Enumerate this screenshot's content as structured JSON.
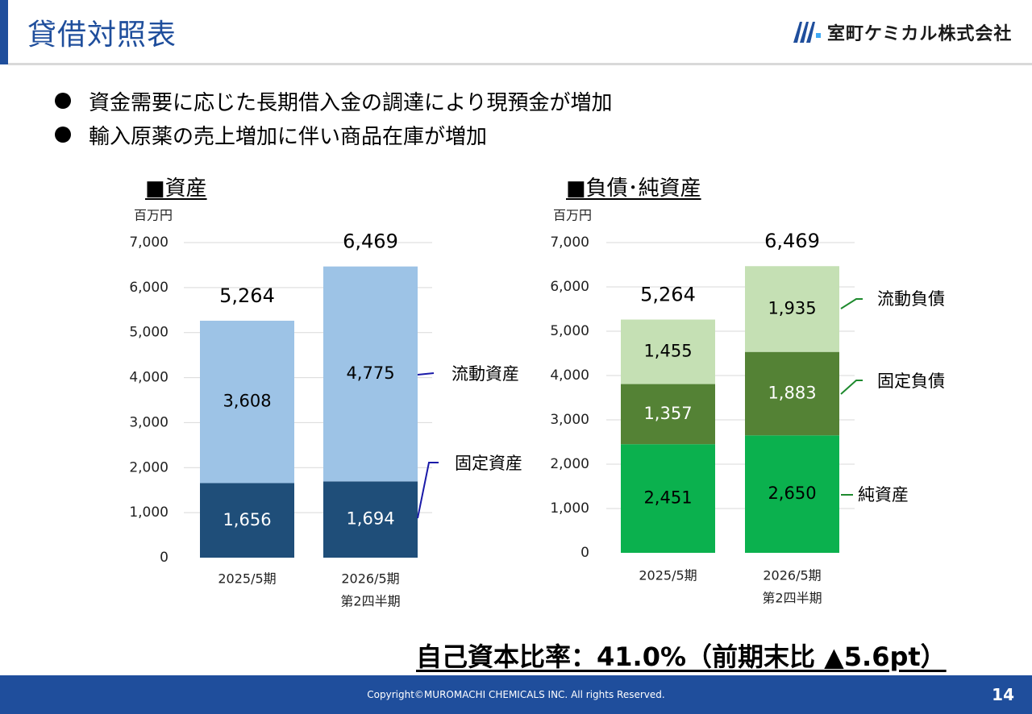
{
  "header": {
    "title": "貸借対照表",
    "company": "室町ケミカル株式会社"
  },
  "bullets": [
    "資金需要に応じた長期借入金の調達により現預金が増加",
    "輸入原薬の売上増加に伴い商品在庫が増加"
  ],
  "chart_data": [
    {
      "type": "bar",
      "stacked": true,
      "title": "■資産",
      "unit_label": "百万円",
      "categories": [
        "2025/5期",
        "2026/5期\n第2四半期"
      ],
      "yticks": [
        "0",
        "1,000",
        "2,000",
        "3,000",
        "4,000",
        "5,000",
        "6,000",
        "7,000"
      ],
      "ylim": [
        0,
        7000
      ],
      "totals": [
        5264,
        6469
      ],
      "total_labels": [
        "5,264",
        "6,469"
      ],
      "series": [
        {
          "name": "固定資産",
          "values": [
            1656,
            1694
          ],
          "labels": [
            "1,656",
            "1,694"
          ],
          "color": "#1f4e79",
          "text_color": "#ffffff",
          "leader_color": "#1a1aa8"
        },
        {
          "name": "流動資産",
          "values": [
            3608,
            4775
          ],
          "labels": [
            "3,608",
            "4,775"
          ],
          "color": "#9dc3e6",
          "text_color": "#000000",
          "leader_color": "#1a1aa8"
        }
      ]
    },
    {
      "type": "bar",
      "stacked": true,
      "title": "■負債･純資産",
      "unit_label": "百万円",
      "categories": [
        "2025/5期",
        "2026/5期\n第2四半期"
      ],
      "yticks": [
        "0",
        "1,000",
        "2,000",
        "3,000",
        "4,000",
        "5,000",
        "6,000",
        "7,000"
      ],
      "ylim": [
        0,
        7000
      ],
      "totals": [
        5264,
        6469
      ],
      "total_labels": [
        "5,264",
        "6,469"
      ],
      "series": [
        {
          "name": "純資産",
          "values": [
            2451,
            2650
          ],
          "labels": [
            "2,451",
            "2,650"
          ],
          "color": "#0bb14e",
          "text_color": "#000000",
          "leader_color": "#1e8a2e"
        },
        {
          "name": "固定負債",
          "values": [
            1357,
            1883
          ],
          "labels": [
            "1,357",
            "1,883"
          ],
          "color": "#548235",
          "text_color": "#ffffff",
          "leader_color": "#1e8a2e"
        },
        {
          "name": "流動負債",
          "values": [
            1455,
            1935
          ],
          "labels": [
            "1,455",
            "1,935"
          ],
          "color": "#c5e0b4",
          "text_color": "#000000",
          "leader_color": "#1e8a2e"
        }
      ]
    }
  ],
  "equity_ratio": "自己資本比率：41.0%（前期末比 ▲5.6pt）",
  "footer": {
    "copyright": "Copyright©MUROMACHI CHEMICALS INC. All rights Reserved.",
    "page_number": "14"
  }
}
